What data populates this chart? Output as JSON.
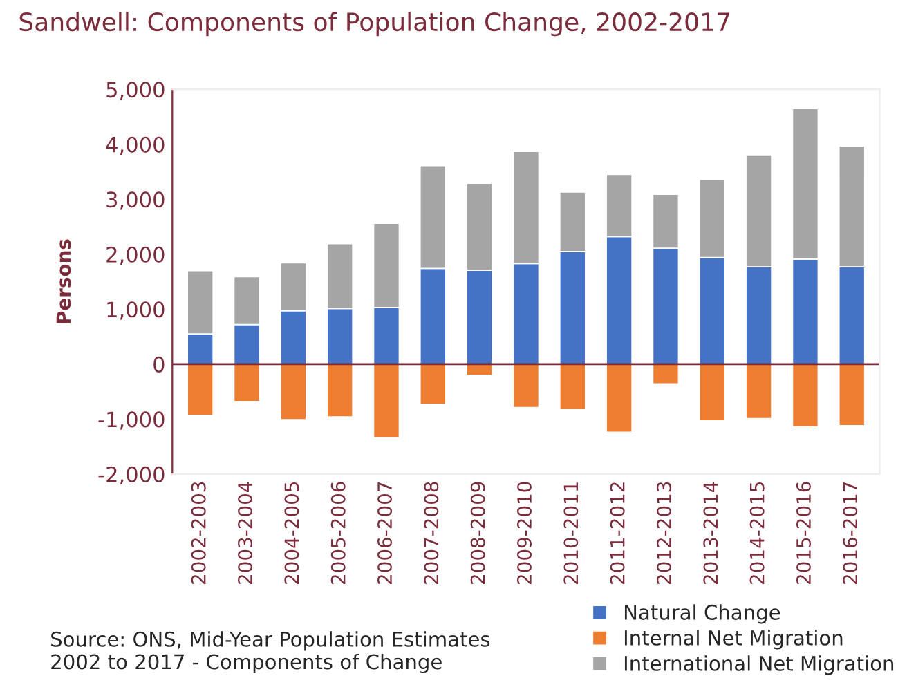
{
  "chart_data": {
    "type": "bar",
    "title": "Sandwell: Components of Population Change, 2002-2017",
    "ylabel": "Persons",
    "categories": [
      "2002-2003",
      "2003-2004",
      "2004-2005",
      "2005-2006",
      "2006-2007",
      "2007-2008",
      "2008-2009",
      "2009-2010",
      "2010-2011",
      "2011-2012",
      "2012-2013",
      "2013-2014",
      "2014-2015",
      "2015-2016",
      "2016-2017"
    ],
    "stacked": true,
    "series": [
      {
        "name": "Natural Change",
        "color": "#4472c4",
        "values": [
          550,
          720,
          970,
          1010,
          1030,
          1740,
          1710,
          1830,
          2050,
          2320,
          2110,
          1940,
          1770,
          1910,
          1770
        ]
      },
      {
        "name": "Internal Net Migration",
        "color": "#ed7d31",
        "values": [
          -930,
          -680,
          -1010,
          -960,
          -1340,
          -730,
          -200,
          -790,
          -830,
          -1240,
          -360,
          -1030,
          -990,
          -1140,
          -1120
        ]
      },
      {
        "name": "International Net Migration",
        "color": "#a5a5a5",
        "values": [
          1150,
          870,
          870,
          1180,
          1530,
          1870,
          1580,
          2040,
          1080,
          1130,
          980,
          1420,
          2040,
          2740,
          2200
        ]
      }
    ],
    "ylim": [
      -2000,
      5000
    ],
    "yticks": [
      {
        "value": -2000,
        "label": "-2,000"
      },
      {
        "value": -1000,
        "label": "-1,000"
      },
      0,
      {
        "value": 1000,
        "label": "1,000"
      },
      {
        "value": 2000,
        "label": "2,000"
      },
      {
        "value": 3000,
        "label": "3,000"
      },
      {
        "value": 4000,
        "label": "4,000"
      },
      {
        "value": 5000,
        "label": "5,000"
      }
    ],
    "ref_lines": [
      {
        "axis": "y",
        "value": 0,
        "color": "#7b2b3a"
      }
    ],
    "legend": "bottom right",
    "grid": false,
    "annotations": [
      "Source: ONS, Mid-Year Population Estimates 2002 to 2017 - Components of Change"
    ]
  }
}
